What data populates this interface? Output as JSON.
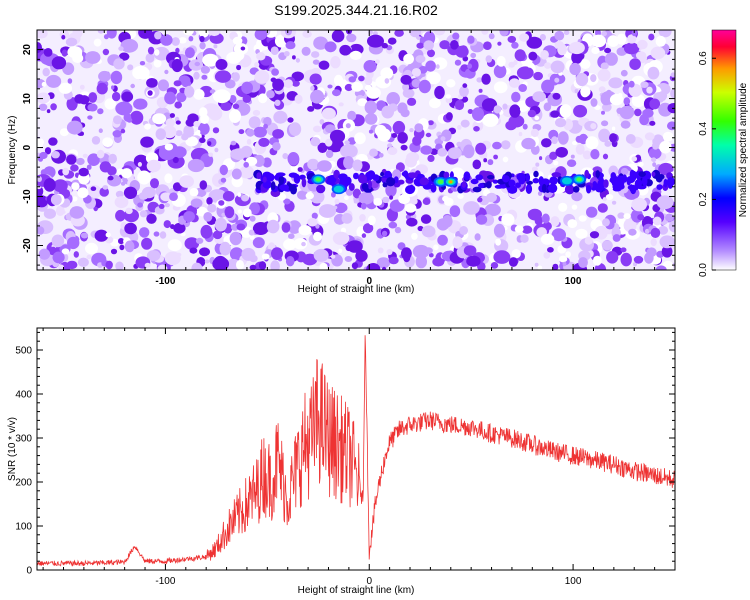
{
  "title": "S199.2025.344.21.16.R02",
  "chart_data": [
    {
      "type": "heatmap",
      "xlabel": "Height of straight line (km)",
      "ylabel": "Frequency (Hz)",
      "xlim": [
        -163,
        150
      ],
      "ylim": [
        -25,
        24
      ],
      "xticks": [
        -100,
        0,
        100
      ],
      "xtick_labels": [
        "-100",
        "0",
        "100"
      ],
      "yticks": [
        -20,
        -10,
        0,
        10,
        20
      ],
      "ytick_labels": [
        "-20",
        "-10",
        "0",
        "10",
        "20"
      ],
      "colorbar": {
        "label": "Normalized spectral amplitude",
        "range": [
          0.0,
          0.68
        ],
        "ticks": [
          0.0,
          0.2,
          0.4,
          0.6
        ],
        "tick_labels": [
          "0.0",
          "0.2",
          "0.4",
          "0.6"
        ]
      },
      "features": [
        {
          "x": -25,
          "freq": -6.5,
          "amp": 0.35
        },
        {
          "x": -15,
          "freq": -8.5,
          "amp": 0.25
        },
        {
          "x": 35,
          "freq": -7,
          "amp": 0.4
        },
        {
          "x": 40,
          "freq": -7,
          "amp": 0.5
        },
        {
          "x": 97,
          "freq": -6.8,
          "amp": 0.3
        },
        {
          "x": 103,
          "freq": -6.5,
          "amp": 0.42
        }
      ],
      "band_freq": -7,
      "band_range": [
        -55,
        150
      ]
    },
    {
      "type": "line",
      "xlabel": "Height of straight line (km)",
      "ylabel": "SNR (10 * v/v)",
      "xlim": [
        -163,
        150
      ],
      "ylim": [
        0,
        550
      ],
      "xticks": [
        -100,
        0,
        100
      ],
      "xtick_labels": [
        "-100",
        "0",
        "100"
      ],
      "yticks": [
        0,
        100,
        200,
        300,
        400,
        500
      ],
      "ytick_labels": [
        "0",
        "100",
        "200",
        "300",
        "400",
        "500"
      ],
      "color": "#ee3333",
      "series": [
        {
          "x": [
            -163,
            -140,
            -120,
            -115,
            -110,
            -100,
            -90,
            -80,
            -75,
            -70,
            -65,
            -60,
            -55,
            -52,
            -48,
            -45,
            -40,
            -35,
            -32,
            -28,
            -25,
            -20,
            -15,
            -10,
            -8,
            -5,
            -3,
            -2,
            0,
            3,
            5,
            8,
            10,
            15,
            20,
            25,
            30,
            40,
            50,
            60,
            70,
            80,
            90,
            100,
            110,
            120,
            130,
            140,
            150
          ],
          "y": [
            15,
            15,
            18,
            55,
            20,
            20,
            25,
            30,
            50,
            90,
            120,
            150,
            180,
            220,
            200,
            250,
            160,
            240,
            280,
            300,
            350,
            300,
            280,
            260,
            240,
            200,
            150,
            545,
            40,
            150,
            200,
            260,
            290,
            320,
            330,
            335,
            340,
            330,
            325,
            310,
            300,
            285,
            270,
            260,
            250,
            240,
            225,
            215,
            205
          ]
        }
      ]
    }
  ]
}
